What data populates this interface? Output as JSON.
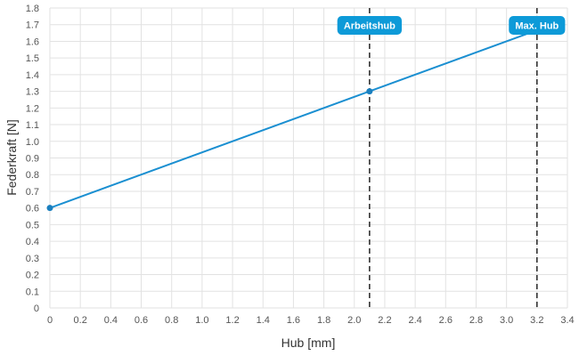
{
  "chart_data": {
    "type": "line",
    "xlabel": "Hub [mm]",
    "ylabel": "Federkraft [N]",
    "xlim": [
      0,
      3.4
    ],
    "ylim": [
      0,
      1.8
    ],
    "x_ticks": [
      "0",
      "0.2",
      "0.4",
      "0.6",
      "0.8",
      "1.0",
      "1.2",
      "1.4",
      "1.6",
      "1.8",
      "2.0",
      "2.2",
      "2.4",
      "2.6",
      "2.8",
      "3.0",
      "3.2",
      "3.4"
    ],
    "y_ticks": [
      "0",
      "0.1",
      "0.2",
      "0.3",
      "0.4",
      "0.5",
      "0.6",
      "0.7",
      "0.8",
      "0.9",
      "1.0",
      "1.1",
      "1.2",
      "1.3",
      "1.4",
      "1.5",
      "1.6",
      "1.7",
      "1.8"
    ],
    "grid": true,
    "series": [
      {
        "x": [
          0,
          2.1,
          3.2
        ],
        "y": [
          0.6,
          1.3,
          1.667
        ]
      }
    ],
    "markers": [
      {
        "x": 0,
        "y": 0.6
      },
      {
        "x": 2.1,
        "y": 1.3
      }
    ],
    "vlines": [
      {
        "x": 2.1,
        "label": "Arbeitshub"
      },
      {
        "x": 3.2,
        "label": "Max. Hub"
      }
    ],
    "colors": {
      "line": "#1a8fd1",
      "marker": "#1a7fbf",
      "badge": "#0d9ad8",
      "vline": "#333333",
      "grid": "#e2e2e2"
    }
  }
}
